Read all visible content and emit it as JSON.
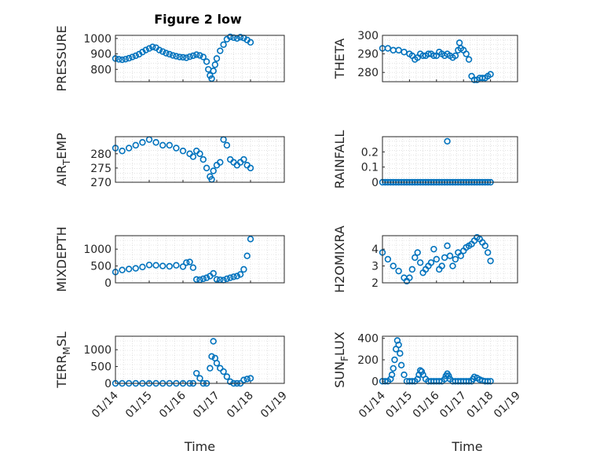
{
  "figure": {
    "title": "Figure 2 low"
  },
  "colors": {
    "marker": "#0072bd",
    "axis": "#262626",
    "grid": "#d0d0d0"
  },
  "chart_data": [
    {
      "type": "scatter",
      "title": "Figure 2 low",
      "ylabel": "PRESSURE",
      "xlabel": "",
      "xlim": [
        0,
        5
      ],
      "ylim": [
        720,
        1020
      ],
      "yticks": [
        800,
        900,
        1000
      ],
      "grid": true,
      "xticks": [],
      "x": [
        0,
        0.1,
        0.2,
        0.3,
        0.4,
        0.5,
        0.6,
        0.7,
        0.8,
        0.9,
        1.0,
        1.1,
        1.2,
        1.3,
        1.4,
        1.5,
        1.6,
        1.7,
        1.8,
        1.9,
        2.0,
        2.1,
        2.2,
        2.3,
        2.4,
        2.5,
        2.6,
        2.7,
        2.75,
        2.8,
        2.85,
        2.9,
        2.95,
        3.0,
        3.1,
        3.2,
        3.3,
        3.4,
        3.5,
        3.6,
        3.7,
        3.8,
        3.9,
        4.0
      ],
      "y": [
        870,
        865,
        862,
        866,
        872,
        880,
        888,
        898,
        912,
        925,
        935,
        945,
        940,
        925,
        915,
        905,
        898,
        890,
        885,
        880,
        878,
        875,
        882,
        888,
        895,
        890,
        880,
        850,
        800,
        760,
        740,
        790,
        830,
        870,
        920,
        960,
        995,
        1010,
        1005,
        1000,
        1008,
        1003,
        990,
        975
      ]
    },
    {
      "type": "scatter",
      "ylabel": "THETA",
      "xlabel": "",
      "xlim": [
        0,
        5
      ],
      "ylim": [
        275,
        300
      ],
      "yticks": [
        280,
        290,
        300
      ],
      "grid": true,
      "xticks": [],
      "x": [
        0,
        0.2,
        0.4,
        0.6,
        0.8,
        1.0,
        1.1,
        1.2,
        1.3,
        1.4,
        1.5,
        1.6,
        1.7,
        1.8,
        1.9,
        2.0,
        2.1,
        2.2,
        2.3,
        2.4,
        2.5,
        2.6,
        2.7,
        2.8,
        2.85,
        2.9,
        3.0,
        3.1,
        3.2,
        3.3,
        3.4,
        3.5,
        3.6,
        3.7,
        3.8,
        3.9,
        4.0
      ],
      "y": [
        293,
        293,
        292,
        292,
        291,
        290,
        289,
        287,
        288,
        290,
        289,
        289,
        290,
        290,
        289,
        289,
        291,
        290,
        289,
        290,
        289,
        288,
        289,
        292,
        296,
        293,
        292,
        290,
        287,
        278,
        276,
        276,
        277,
        277,
        277,
        278,
        279
      ]
    },
    {
      "type": "scatter",
      "ylabel": "AIR_TEMP",
      "xlabel": "",
      "xlim": [
        0,
        5
      ],
      "ylim": [
        270,
        286
      ],
      "yticks": [
        270,
        275,
        280
      ],
      "grid": true,
      "xticks": [],
      "x": [
        0,
        0.2,
        0.4,
        0.6,
        0.8,
        1.0,
        1.2,
        1.4,
        1.6,
        1.8,
        2.0,
        2.2,
        2.3,
        2.4,
        2.5,
        2.6,
        2.7,
        2.8,
        2.85,
        2.9,
        3.0,
        3.1,
        3.2,
        3.3,
        3.4,
        3.5,
        3.6,
        3.7,
        3.8,
        3.9,
        4.0
      ],
      "y": [
        282,
        281,
        282,
        283,
        284,
        285,
        284,
        283,
        283,
        282,
        281,
        280,
        279,
        281,
        280,
        278,
        275,
        272,
        271,
        274,
        276,
        277,
        285,
        283,
        278,
        277,
        276,
        277,
        278,
        276,
        275
      ]
    },
    {
      "type": "scatter",
      "ylabel": "RAINFALL",
      "xlabel": "",
      "xlim": [
        0,
        5
      ],
      "ylim": [
        0,
        0.3
      ],
      "yticks": [
        0,
        0.1,
        0.2
      ],
      "grid": true,
      "xticks": [],
      "x": [
        0,
        0.1,
        0.2,
        0.3,
        0.4,
        0.5,
        0.6,
        0.7,
        0.8,
        0.9,
        1.0,
        1.1,
        1.2,
        1.3,
        1.4,
        1.5,
        1.6,
        1.7,
        1.8,
        1.9,
        2.0,
        2.1,
        2.2,
        2.3,
        2.4,
        2.5,
        2.6,
        2.7,
        2.8,
        2.9,
        3.0,
        3.1,
        3.2,
        3.3,
        3.4,
        3.5,
        3.6,
        3.7,
        3.8,
        3.9,
        4.0,
        2.4
      ],
      "y": [
        0,
        0,
        0,
        0,
        0,
        0,
        0,
        0,
        0,
        0,
        0,
        0,
        0,
        0,
        0,
        0,
        0,
        0,
        0,
        0,
        0,
        0,
        0,
        0,
        0,
        0,
        0,
        0,
        0,
        0,
        0,
        0,
        0,
        0,
        0,
        0,
        0,
        0,
        0,
        0,
        0,
        0.27
      ]
    },
    {
      "type": "scatter",
      "ylabel": "MIXDEPTH",
      "xlabel": "",
      "xlim": [
        0,
        5
      ],
      "ylim": [
        0,
        1400
      ],
      "yticks": [
        0,
        500,
        1000
      ],
      "grid": true,
      "xticks": [],
      "x": [
        0,
        0.2,
        0.4,
        0.6,
        0.8,
        1.0,
        1.2,
        1.4,
        1.6,
        1.8,
        2.0,
        2.1,
        2.2,
        2.3,
        2.4,
        2.5,
        2.6,
        2.7,
        2.8,
        2.9,
        3.0,
        3.1,
        3.2,
        3.3,
        3.4,
        3.5,
        3.6,
        3.7,
        3.8,
        3.9,
        4.0
      ],
      "y": [
        320,
        380,
        410,
        430,
        470,
        530,
        520,
        500,
        490,
        520,
        480,
        600,
        620,
        450,
        100,
        90,
        120,
        150,
        200,
        280,
        100,
        90,
        80,
        120,
        150,
        180,
        200,
        250,
        400,
        800,
        1300
      ]
    },
    {
      "type": "scatter",
      "ylabel": "H2OMIXRA",
      "xlabel": "",
      "xlim": [
        0,
        5
      ],
      "ylim": [
        2,
        4.8
      ],
      "yticks": [
        2,
        3,
        4
      ],
      "grid": true,
      "xticks": [],
      "x": [
        0,
        0.2,
        0.4,
        0.6,
        0.8,
        0.9,
        1.0,
        1.1,
        1.2,
        1.3,
        1.4,
        1.5,
        1.6,
        1.7,
        1.8,
        1.9,
        2.0,
        2.1,
        2.2,
        2.3,
        2.4,
        2.5,
        2.6,
        2.7,
        2.8,
        2.9,
        3.0,
        3.1,
        3.2,
        3.3,
        3.4,
        3.5,
        3.6,
        3.7,
        3.8,
        3.9,
        4.0
      ],
      "y": [
        3.8,
        3.4,
        3.0,
        2.7,
        2.3,
        2.1,
        2.3,
        2.8,
        3.5,
        3.8,
        3.2,
        2.6,
        2.8,
        3.0,
        3.2,
        4.0,
        3.4,
        2.8,
        3.0,
        3.5,
        4.2,
        3.6,
        3.0,
        3.4,
        3.8,
        3.6,
        3.9,
        4.1,
        4.2,
        4.3,
        4.5,
        4.7,
        4.6,
        4.4,
        4.2,
        3.8,
        3.3
      ]
    },
    {
      "type": "scatter",
      "ylabel": "TERR_MSL",
      "xlabel": "Time",
      "xlim": [
        0,
        5
      ],
      "ylim": [
        0,
        1400
      ],
      "yticks": [
        0,
        500,
        1000
      ],
      "grid": true,
      "xticks": [
        "01/14",
        "01/15",
        "01/16",
        "01/17",
        "01/18",
        "01/19"
      ],
      "x": [
        0,
        0.2,
        0.4,
        0.6,
        0.8,
        1.0,
        1.2,
        1.4,
        1.6,
        1.8,
        2.0,
        2.2,
        2.3,
        2.4,
        2.5,
        2.6,
        2.7,
        2.8,
        2.85,
        2.9,
        2.95,
        3.0,
        3.1,
        3.2,
        3.3,
        3.4,
        3.5,
        3.6,
        3.7,
        3.8,
        3.9,
        4.0
      ],
      "y": [
        0,
        0,
        0,
        0,
        0,
        0,
        0,
        0,
        0,
        0,
        0,
        0,
        0,
        300,
        150,
        0,
        0,
        450,
        800,
        1250,
        750,
        600,
        450,
        350,
        200,
        50,
        0,
        0,
        0,
        100,
        130,
        150
      ]
    },
    {
      "type": "scatter",
      "ylabel": "SUN_FLUX",
      "xlabel": "Time",
      "xlim": [
        0,
        5
      ],
      "ylim": [
        -20,
        420
      ],
      "yticks": [
        0,
        200,
        400
      ],
      "grid": true,
      "xticks": [
        "01/14",
        "01/15",
        "01/16",
        "01/17",
        "01/18",
        "01/19"
      ],
      "x": [
        0,
        0.1,
        0.2,
        0.3,
        0.35,
        0.4,
        0.45,
        0.5,
        0.55,
        0.6,
        0.65,
        0.7,
        0.8,
        0.9,
        1.0,
        1.1,
        1.2,
        1.3,
        1.35,
        1.4,
        1.45,
        1.5,
        1.6,
        1.7,
        1.8,
        1.9,
        2.0,
        2.1,
        2.2,
        2.3,
        2.35,
        2.4,
        2.45,
        2.5,
        2.6,
        2.7,
        2.8,
        2.9,
        3.0,
        3.1,
        3.2,
        3.3,
        3.35,
        3.4,
        3.5,
        3.6,
        3.7,
        3.8,
        3.9,
        4.0
      ],
      "y": [
        0,
        0,
        0,
        20,
        60,
        120,
        200,
        300,
        380,
        340,
        260,
        150,
        60,
        0,
        0,
        0,
        0,
        20,
        60,
        100,
        90,
        60,
        20,
        0,
        0,
        0,
        0,
        0,
        0,
        20,
        50,
        70,
        50,
        20,
        0,
        0,
        0,
        0,
        0,
        0,
        0,
        0,
        20,
        40,
        30,
        15,
        5,
        0,
        0,
        0
      ]
    }
  ]
}
